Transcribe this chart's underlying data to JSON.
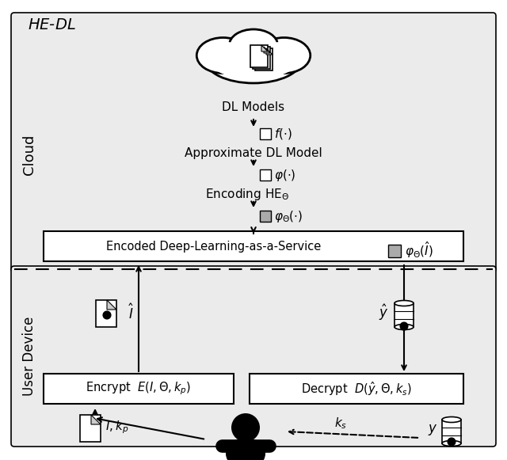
{
  "bg_color": "#f0f0f0",
  "white": "#ffffff",
  "gray_box": "#d0d0d0",
  "dark": "#000000",
  "light_gray": "#e8e8e8",
  "med_gray": "#b0b0b0",
  "title": "HE-DL",
  "cloud_label": "DL Models",
  "approx_label": "Approximate DL Model",
  "encoding_label": "Encoding HE",
  "service_label": "Encoded Deep-Learning-as-a-Service",
  "encrypt_label": "Encrypt",
  "decrypt_label": "Decrypt",
  "cloud_side_label": "Cloud",
  "user_side_label": "User Device",
  "figsize": [
    6.4,
    5.81
  ],
  "dpi": 100
}
